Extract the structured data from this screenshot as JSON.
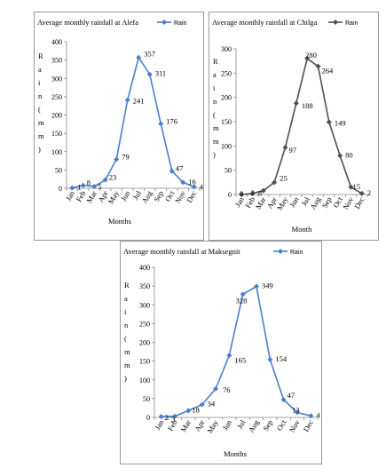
{
  "chart_data": [
    {
      "type": "line",
      "title": "Average monthly rainfall at Alefa",
      "legend": "Rain",
      "xlabel": "Months",
      "ylabel_letters": [
        "R",
        "a",
        "i",
        "n",
        "(",
        "m",
        "m",
        ")"
      ],
      "ylim": [
        0,
        400
      ],
      "yticks": [
        "0",
        "50",
        "100",
        "150",
        "200",
        "250",
        "300",
        "350",
        "400"
      ],
      "categories": [
        "Jan",
        "Feb",
        "Mar",
        "Apr",
        "May",
        "Jun",
        "Jul",
        "Aug",
        "Sep",
        "Oct",
        "Nov",
        "Dec"
      ],
      "values": [
        1,
        8,
        5,
        23,
        79,
        241,
        357,
        311,
        176,
        47,
        16,
        4
      ],
      "labels": [
        "1",
        "8",
        "5",
        "23",
        "79",
        "241",
        "357",
        "311",
        "176",
        "47",
        "16",
        "4"
      ],
      "color": "#4a7fd0"
    },
    {
      "type": "line",
      "title": "Average monthly rainfall at Chilga",
      "legend": "Rain",
      "xlabel": "Month",
      "ylabel_letters": [
        "R",
        "a",
        "i",
        "n",
        "(",
        "m",
        "m",
        ")"
      ],
      "ylim": [
        0,
        300
      ],
      "yticks": [
        "0",
        "50",
        "100",
        "150",
        "200",
        "250",
        "300"
      ],
      "categories": [
        "Jan",
        "Feb",
        "Mar",
        "Apr",
        "May",
        "Jun",
        "Jul",
        "Aug",
        "Sep",
        "Oct",
        "Nov",
        "Dec"
      ],
      "values": [
        0,
        2,
        8,
        25,
        97,
        188,
        280,
        264,
        149,
        80,
        15,
        2
      ],
      "labels": [
        "0",
        "2",
        "8",
        "25",
        "97",
        "188",
        "280",
        "264",
        "149",
        "80",
        "15",
        "2"
      ],
      "color": "#505050"
    },
    {
      "type": "line",
      "title": "Average monthly rainfall at Maksegnit",
      "legend": "Rain",
      "xlabel": "Months",
      "ylabel_letters": [
        "R",
        "a",
        "i",
        "n",
        "(",
        "m",
        "m",
        ")"
      ],
      "ylim": [
        0,
        400
      ],
      "yticks": [
        "0",
        "50",
        "100",
        "150",
        "200",
        "250",
        "300",
        "350",
        "400"
      ],
      "categories": [
        "Jan",
        "Feb",
        "Mar",
        "Apr",
        "May",
        "Jun",
        "Jul",
        "Aug",
        "Sep",
        "Oct",
        "Nov",
        "Dec"
      ],
      "values": [
        2,
        3,
        18,
        34,
        76,
        165,
        328,
        349,
        154,
        47,
        13,
        4
      ],
      "labels": [
        "2",
        "3",
        "18",
        "34",
        "76",
        "165",
        "328",
        "349",
        "154",
        "47",
        "13",
        "4"
      ],
      "color": "#4a7fd0"
    }
  ]
}
